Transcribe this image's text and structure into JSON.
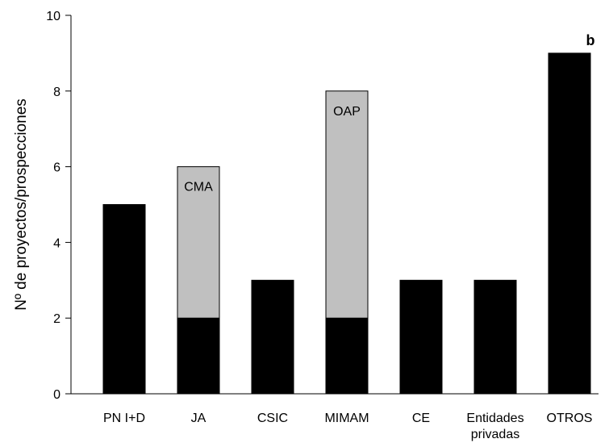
{
  "chart_data": {
    "type": "bar",
    "stacked": true,
    "panel_label": "b",
    "ylabel": "Nº de proyectos/prospecciones",
    "xlabel": "",
    "ylim": [
      0,
      10
    ],
    "yticks": [
      0,
      2,
      4,
      6,
      8,
      10
    ],
    "categories": [
      "PN I+D",
      "JA",
      "CSIC",
      "MIMAM",
      "CE",
      "Entidades privadas",
      "OTROS"
    ],
    "category_lines": [
      [
        "PN I+D"
      ],
      [
        "JA"
      ],
      [
        "CSIC"
      ],
      [
        "MIMAM"
      ],
      [
        "CE"
      ],
      [
        "Entidades",
        "privadas"
      ],
      [
        "OTROS"
      ]
    ],
    "series": [
      {
        "values": [
          5,
          2,
          3,
          2,
          3,
          3,
          9
        ],
        "color": "#000000"
      },
      {
        "values": [
          0,
          4,
          0,
          6,
          0,
          0,
          0
        ],
        "color": "#c0c0c0"
      }
    ],
    "annotations": [
      {
        "category": "JA",
        "text": "CMA"
      },
      {
        "category": "MIMAM",
        "text": "OAP"
      }
    ],
    "grid": false
  }
}
